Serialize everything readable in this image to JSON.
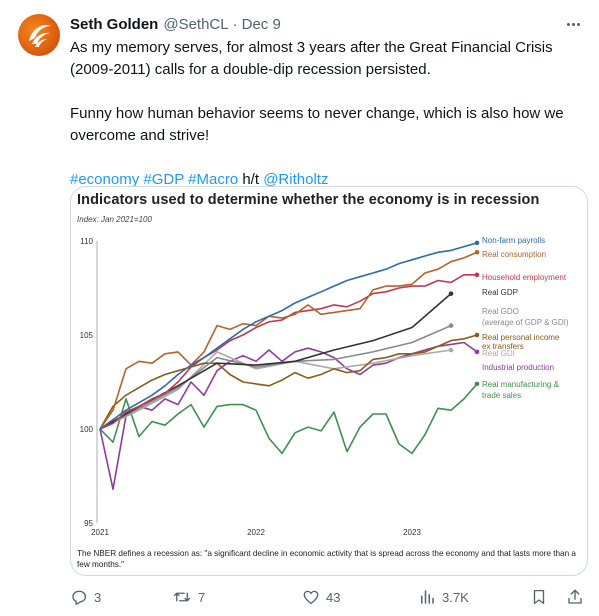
{
  "author": {
    "name": "Seth Golden",
    "handle": "@SethCL",
    "separator": "·",
    "date": "Dec 9"
  },
  "tweet": {
    "paragraph1": "As my memory serves, for almost 3 years after the Great Financial Crisis (2009-2011) calls for a double-dip recession persisted.",
    "paragraph2": "Funny how human behavior seems to never change, which is also how we overcome and strive!",
    "hashtags": [
      "#economy",
      "#GDP",
      "#Macro"
    ],
    "ht_text": "h/t",
    "mention": "@Ritholtz"
  },
  "actions": {
    "reply_count": "3",
    "retweet_count": "7",
    "like_count": "43",
    "views_count": "3.7K"
  },
  "icons": [
    "more-icon",
    "reply-icon",
    "retweet-icon",
    "like-icon",
    "views-icon",
    "bookmark-icon",
    "share-icon"
  ],
  "colors": {
    "link": "#1d9bf0",
    "muted": "#536471",
    "brand_orange": "#e8650f"
  },
  "chart_data": {
    "type": "line",
    "title": "Indicators used to determine whether the economy is in recession",
    "subtitle": "Index: Jan 2021=100",
    "footnote": "The NBER defines a recession as: \"a significant decline in economic activity that is spread across the economy and that lasts more than a few months.\"",
    "xlabel": "",
    "ylabel": "",
    "ylim": [
      95,
      110
    ],
    "yticks": [
      95,
      100,
      105,
      110
    ],
    "xlim": [
      0,
      29
    ],
    "xticks": [
      {
        "month_index": 0,
        "label": "2021"
      },
      {
        "month_index": 12,
        "label": "2022"
      },
      {
        "month_index": 24,
        "label": "2023"
      }
    ],
    "grid": false,
    "legend": "direct labels at right end of each line",
    "series": [
      {
        "name": "Non-farm payrolls",
        "color": "#2e6ca8",
        "values": [
          100,
          100.5,
          101,
          101.4,
          101.8,
          102.3,
          102.9,
          103.4,
          103.8,
          104.3,
          104.8,
          105.3,
          105.7,
          106,
          106.3,
          106.7,
          107,
          107.3,
          107.6,
          107.9,
          108.1,
          108.3,
          108.5,
          108.8,
          109,
          109.2,
          109.4,
          109.5,
          109.7,
          109.9
        ]
      },
      {
        "name": "Real consumption",
        "color": "#b5632b",
        "values": [
          100,
          101,
          103.2,
          103.6,
          103.5,
          104,
          104.1,
          103.4,
          104.1,
          105.5,
          105.3,
          105.6,
          105.5,
          106,
          105.9,
          106.1,
          106.6,
          106.1,
          106.2,
          106.3,
          106.4,
          107.4,
          107.6,
          107.6,
          107.7,
          108.3,
          108.5,
          108.9,
          109.1,
          109.4
        ]
      },
      {
        "name": "Household employment",
        "color": "#c2384f",
        "values": [
          100,
          100.3,
          100.9,
          101.2,
          101.6,
          101.9,
          102.5,
          103.3,
          103.8,
          104.2,
          104.7,
          105,
          105.4,
          105.7,
          105.8,
          106.2,
          106.3,
          106.4,
          106.6,
          106.5,
          106.8,
          107.2,
          107.3,
          107.5,
          107.6,
          107.6,
          107.9,
          107.8,
          108.2,
          108.2
        ]
      },
      {
        "name": "Real GDP",
        "color": "#333333",
        "values": [
          100,
          null,
          null,
          101.2,
          null,
          null,
          102.3,
          null,
          null,
          103.5,
          null,
          null,
          103.4,
          null,
          null,
          103.6,
          null,
          null,
          104.2,
          null,
          null,
          104.7,
          null,
          null,
          105.4,
          null,
          null,
          107.2
        ]
      },
      {
        "name": "Real GDO (average of GDP & GDI)",
        "color": "#8a8a8a",
        "values": [
          100,
          null,
          null,
          101.1,
          null,
          null,
          102.2,
          null,
          null,
          103.8,
          null,
          null,
          103.3,
          null,
          null,
          103.6,
          null,
          null,
          103.7,
          null,
          null,
          104.1,
          null,
          null,
          104.6,
          null,
          null,
          105.5
        ]
      },
      {
        "name": "Real personal income ex transfers",
        "color": "#8b5a1a",
        "values": [
          100,
          101.2,
          101.8,
          102.2,
          102.6,
          102.9,
          103.1,
          103.3,
          103.5,
          103.5,
          102.9,
          102.5,
          102.4,
          102.3,
          102.6,
          103,
          102.7,
          102.9,
          103.2,
          103,
          103.1,
          103.7,
          103.8,
          104,
          104,
          104.1,
          104.4,
          104.7,
          104.8,
          105
        ]
      },
      {
        "name": "Real GDI",
        "color": "#aaaaaa",
        "values": [
          100,
          null,
          null,
          101,
          null,
          null,
          102.1,
          null,
          null,
          104.1,
          null,
          null,
          103.2,
          null,
          null,
          103.6,
          null,
          null,
          103.2,
          null,
          null,
          103.5,
          null,
          null,
          103.9,
          null,
          null,
          104.2
        ]
      },
      {
        "name": "Industrial production",
        "color": "#8e3c9b",
        "values": [
          100,
          96.8,
          100.7,
          101.2,
          101,
          101.6,
          101.3,
          102.5,
          101.8,
          103.1,
          103.6,
          103.9,
          103.6,
          104.2,
          103.6,
          104.1,
          104.3,
          104.1,
          103.8,
          103.2,
          102.9,
          103.4,
          103.5,
          103.8,
          104,
          104.2,
          104.4,
          104.5,
          104.6,
          104.1
        ]
      },
      {
        "name": "Real manufacturing & trade sales",
        "color": "#3f8f4e",
        "values": [
          100,
          99.3,
          101.6,
          99.6,
          100.4,
          100.2,
          100.8,
          101.3,
          100.1,
          101.2,
          101.3,
          101.3,
          101,
          99.5,
          98.7,
          99.8,
          100.1,
          99.9,
          100.9,
          98.8,
          100.1,
          100.8,
          100.8,
          99.2,
          98.7,
          99.7,
          101.1,
          101,
          101.6,
          102.4
        ]
      }
    ]
  }
}
